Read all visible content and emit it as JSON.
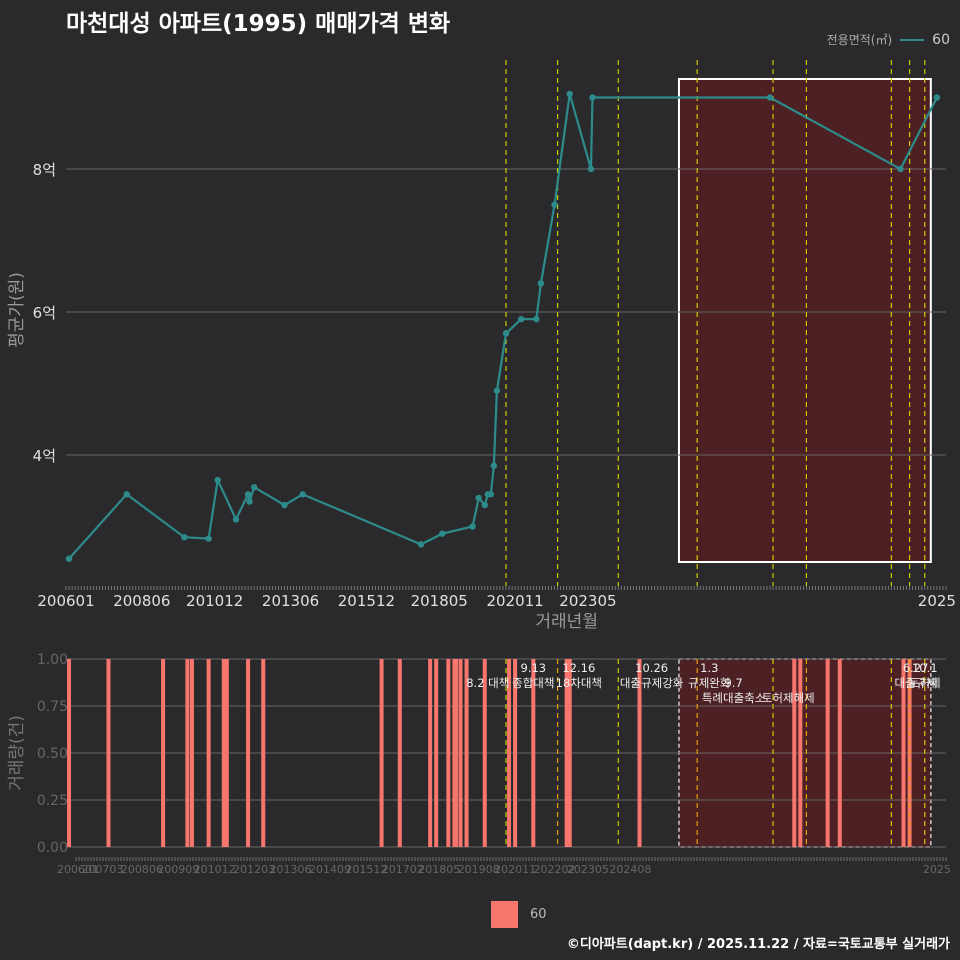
{
  "title": "마천대성 아파트(1995) 매매가격 변화",
  "legend_top": {
    "title": "전용면적(㎡)",
    "label": "60"
  },
  "legend_bottom": {
    "label": "60"
  },
  "footer": "©디아파트(dapt.kr) / 2025.11.22 / 자료=국토교통부 실거래가",
  "colors": {
    "line": "#2e8b8b",
    "bar": "#f8766d",
    "vline": "#cccc00",
    "vline_orange": "#e6a000",
    "region": "#5a1e22",
    "grid": "#666666"
  },
  "chart_data": [
    {
      "type": "line",
      "title": "마천대성 아파트(1995) 매매가격 변화",
      "xlabel": "거래년월",
      "ylabel": "평균가(원)",
      "x_ticks": [
        "200601",
        "200806",
        "201012",
        "201306",
        "201512",
        "201805",
        "202011",
        "202305",
        "2025"
      ],
      "y_ticks": [
        "4억",
        "6억",
        "8억"
      ],
      "y_tick_values": [
        4,
        6,
        8
      ],
      "series": [
        {
          "name": "60",
          "x": [
            2006.1,
            2008.0,
            2009.9,
            2010.7,
            2011.0,
            2011.6,
            2012.0,
            2012.05,
            2012.2,
            2013.2,
            2013.8,
            2017.7,
            2018.4,
            2019.4,
            2019.6,
            2019.8,
            2019.9,
            2020.0,
            2020.1,
            2020.2,
            2020.5,
            2021.0,
            2021.5,
            2021.65,
            2022.1,
            2022.6,
            2023.3,
            2023.35,
            2029.2,
            2033.5,
            2034.7
          ],
          "y": [
            2.55,
            3.45,
            2.85,
            2.83,
            3.65,
            3.1,
            3.45,
            3.35,
            3.55,
            3.3,
            3.45,
            2.75,
            2.9,
            3.0,
            3.4,
            3.3,
            3.45,
            3.45,
            3.85,
            4.9,
            5.7,
            5.9,
            5.9,
            6.4,
            7.5,
            9.05,
            8.0,
            9.0,
            9.0,
            8.0,
            9.0
          ]
        }
      ],
      "vertical_lines": [
        2020.5,
        2022.2,
        2024.2,
        2026.8,
        2029.3,
        2030.4,
        2033.2,
        2033.8,
        2034.3
      ],
      "highlight_region": [
        2026.2,
        2034.5
      ]
    },
    {
      "type": "bar",
      "xlabel": "",
      "ylabel": "거래량(건)",
      "x_ticks": [
        "200601",
        "200703",
        "200806",
        "200909",
        "201012",
        "201203",
        "201306",
        "201409",
        "201512",
        "201702",
        "201805",
        "201908",
        "202011",
        "202202",
        "202305",
        "202408",
        "2025"
      ],
      "y_ticks": [
        "0.00",
        "0.25",
        "0.50",
        "0.75",
        "1.00"
      ],
      "ylim": [
        0,
        1
      ],
      "bars_x": [
        2006.1,
        2007.4,
        2009.2,
        2010.0,
        2010.15,
        2010.7,
        2011.2,
        2011.3,
        2012.0,
        2012.5,
        2016.4,
        2017.0,
        2018.0,
        2018.2,
        2018.6,
        2018.8,
        2018.85,
        2019.0,
        2019.2,
        2019.8,
        2020.6,
        2020.8,
        2021.4,
        2022.5,
        2022.6,
        2024.9,
        2030.0,
        2030.2,
        2031.1,
        2031.5,
        2033.6,
        2033.8
      ],
      "bars_value": 1,
      "annotations": [
        {
          "x": 2019.9,
          "label": "8.2 대책",
          "row": 1
        },
        {
          "x": 2021.4,
          "label": "9.13",
          "row": 0
        },
        {
          "x": 2021.4,
          "label": "종합대책",
          "row": 1
        },
        {
          "x": 2022.9,
          "label": "12.16",
          "row": 0
        },
        {
          "x": 2022.9,
          "label": "18차대책",
          "row": 1
        },
        {
          "x": 2025.3,
          "label": "10.26",
          "row": 0
        },
        {
          "x": 2025.3,
          "label": "대출규제강화",
          "row": 1
        },
        {
          "x": 2027.2,
          "label": "1.3",
          "row": 0
        },
        {
          "x": 2027.2,
          "label": "규제완화",
          "row": 1
        },
        {
          "x": 2028.0,
          "label": "9.7",
          "row": 1
        },
        {
          "x": 2028.0,
          "label": "특례대출축소",
          "row": 2
        },
        {
          "x": 2029.8,
          "label": "토허제해제",
          "row": 2
        },
        {
          "x": 2034.0,
          "label": "6.27",
          "row": 0
        },
        {
          "x": 2034.0,
          "label": "대출규제",
          "row": 1
        },
        {
          "x": 2034.3,
          "label": "10.1",
          "row": 0
        },
        {
          "x": 2034.3,
          "label": "토허제",
          "row": 1
        }
      ],
      "vertical_lines_yellow": [
        2020.5,
        2022.2,
        2024.2,
        2026.8,
        2029.3,
        2030.4,
        2033.2,
        2033.8,
        2034.3
      ],
      "highlight_region": [
        2026.2,
        2034.5
      ]
    }
  ]
}
